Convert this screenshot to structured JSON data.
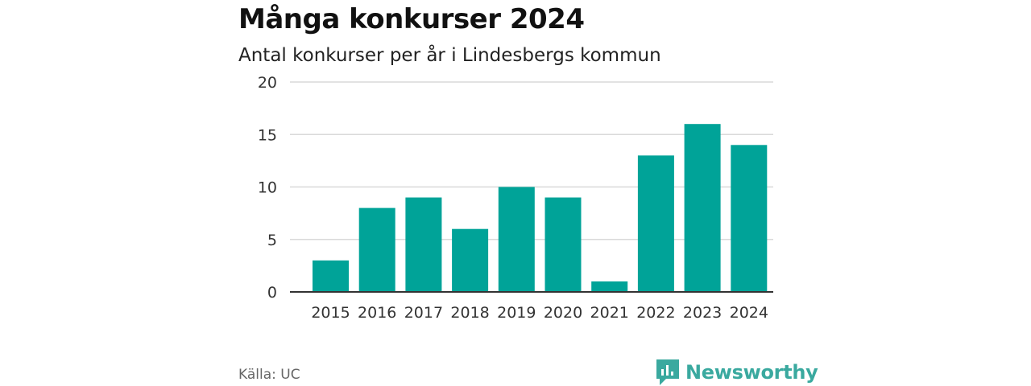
{
  "header": {
    "title": "Många konkurser 2024",
    "subtitle": "Antal konkurser per år i Lindesbergs kommun"
  },
  "footer": {
    "source": "Källa: UC",
    "brand": "Newsworthy"
  },
  "colors": {
    "bar": "#00a398",
    "brand": "#3aa99f",
    "grid": "#d9d9d9",
    "axis": "#333333"
  },
  "chart_data": {
    "type": "bar",
    "title": "Många konkurser 2024",
    "subtitle": "Antal konkurser per år i Lindesbergs kommun",
    "categories": [
      "2015",
      "2016",
      "2017",
      "2018",
      "2019",
      "2020",
      "2021",
      "2022",
      "2023",
      "2024"
    ],
    "values": [
      3,
      8,
      9,
      6,
      10,
      9,
      1,
      13,
      16,
      14
    ],
    "ylim": [
      0,
      20
    ],
    "yticks": [
      0,
      5,
      10,
      15,
      20
    ],
    "xlabel": "",
    "ylabel": "",
    "grid": true,
    "legend": "none"
  }
}
